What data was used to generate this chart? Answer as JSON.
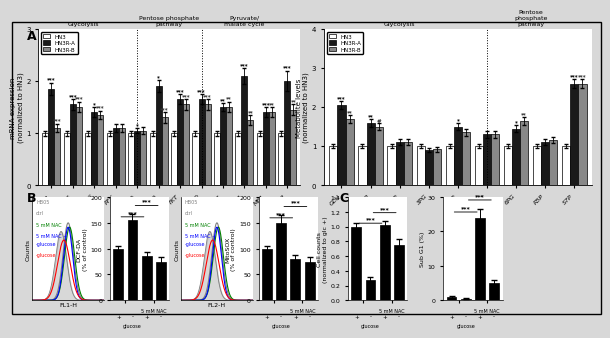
{
  "panel_A_left": {
    "categories": [
      "Glut1",
      "Glut3",
      "HKII",
      "PFK",
      "LDHA",
      "G6PD",
      "TKT",
      "TALDO",
      "GOT1",
      "MDH1",
      "ME1",
      "ME2"
    ],
    "HN3": [
      1.0,
      1.0,
      1.0,
      1.0,
      1.0,
      1.0,
      1.0,
      1.0,
      1.0,
      1.0,
      1.0,
      1.0
    ],
    "HN3R_A": [
      1.85,
      1.55,
      1.4,
      1.1,
      1.05,
      1.9,
      1.65,
      1.65,
      1.5,
      2.1,
      1.4,
      2.0
    ],
    "HN3R_B": [
      1.1,
      1.5,
      1.35,
      1.1,
      1.05,
      1.3,
      1.55,
      1.55,
      1.5,
      1.25,
      1.4,
      1.45
    ],
    "HN3_err": [
      0.05,
      0.05,
      0.05,
      0.05,
      0.05,
      0.05,
      0.05,
      0.05,
      0.05,
      0.05,
      0.05,
      0.05
    ],
    "HN3R_A_err": [
      0.12,
      0.1,
      0.1,
      0.08,
      0.05,
      0.12,
      0.1,
      0.1,
      0.08,
      0.15,
      0.1,
      0.2
    ],
    "HN3R_B_err": [
      0.08,
      0.1,
      0.08,
      0.08,
      0.06,
      0.1,
      0.1,
      0.1,
      0.1,
      0.1,
      0.1,
      0.1
    ],
    "sig_A": [
      "***",
      "***",
      "*",
      "",
      "*",
      "*",
      "***",
      "***",
      "**",
      "***",
      "***",
      "***"
    ],
    "sig_B": [
      "***",
      "***",
      "***",
      "",
      "",
      "***",
      "***",
      "***",
      "**",
      "**",
      "**",
      "**"
    ],
    "ylabel": "mRNA expression\n(normalized to HN3)",
    "ylim": [
      0,
      3.0
    ],
    "sections": [
      {
        "label": "Glycolysis",
        "start": 0,
        "end": 4
      },
      {
        "label": "Pentose phosphate\npathway",
        "start": 5,
        "end": 7
      },
      {
        "label": "Pyruvate/\nmalate cycle",
        "start": 8,
        "end": 11
      }
    ],
    "dividers": [
      4.5,
      7.5
    ]
  },
  "panel_A_right": {
    "categories": [
      "GLU",
      "G6P/F6P",
      "FBP",
      "3PG",
      "PEP",
      "PYR",
      "6PG",
      "R5P",
      "S7P"
    ],
    "HN3": [
      1.0,
      1.0,
      1.0,
      1.0,
      1.0,
      1.0,
      1.0,
      1.0,
      1.0
    ],
    "HN3R_A": [
      2.05,
      1.6,
      1.1,
      0.9,
      1.5,
      1.3,
      1.45,
      1.1,
      2.6
    ],
    "HN3R_B": [
      1.7,
      1.5,
      1.1,
      0.92,
      1.35,
      1.3,
      1.65,
      1.15,
      2.6
    ],
    "HN3_err": [
      0.05,
      0.05,
      0.05,
      0.05,
      0.05,
      0.05,
      0.05,
      0.05,
      0.05
    ],
    "HN3R_A_err": [
      0.1,
      0.1,
      0.08,
      0.06,
      0.08,
      0.1,
      0.08,
      0.08,
      0.12
    ],
    "HN3R_B_err": [
      0.1,
      0.08,
      0.08,
      0.06,
      0.08,
      0.1,
      0.1,
      0.08,
      0.12
    ],
    "sig_A": [
      "***",
      "**",
      "",
      "",
      "*",
      "",
      "*",
      "",
      "***"
    ],
    "sig_B": [
      "**",
      "#",
      "",
      "",
      "",
      "",
      "**",
      "",
      "***"
    ],
    "ylabel": "Metabolite levels\n(normalized to HN3)",
    "ylim": [
      0,
      4.0
    ],
    "sections": [
      {
        "label": "Glycolysis",
        "start": 0,
        "end": 5
      },
      {
        "label": "Pentose\nphosphate\npathway",
        "start": 6,
        "end": 8
      }
    ],
    "dividers": [
      5.5
    ]
  },
  "colors": {
    "HN3": "#ffffff",
    "HN3R_A": "#1a1a1a",
    "HN3R_B": "#888888",
    "edge": "#000000"
  },
  "panel_B_bar_left": {
    "ylabel": "DCF-DA\n(% of control)",
    "ylim": [
      0,
      200
    ],
    "yticks": [
      0,
      50,
      100,
      150,
      200
    ],
    "bars": [
      100,
      155,
      85,
      75
    ],
    "errors": [
      5,
      12,
      8,
      8
    ],
    "xlabel_groups": [
      "glucose\n+ +\n5 mM NAC"
    ],
    "sig": "***"
  },
  "panel_B_bar_right": {
    "ylabel": "MitoSOX\n(% of control)",
    "ylim": [
      0,
      200
    ],
    "yticks": [
      0,
      50,
      100,
      150,
      200
    ],
    "bars": [
      100,
      150,
      80,
      75
    ],
    "errors": [
      5,
      15,
      8,
      8
    ],
    "sig": "***"
  },
  "panel_C_left": {
    "ylabel": "Cell counts\n(normalized to glc +)",
    "ylim": [
      0,
      1.4
    ],
    "yticks": [
      0.0,
      0.2,
      0.4,
      0.6,
      0.8,
      1.0,
      1.2,
      1.4
    ],
    "bars": [
      1.0,
      0.28,
      1.02,
      0.75
    ],
    "errors": [
      0.05,
      0.04,
      0.06,
      0.08
    ],
    "sig": "***"
  },
  "panel_C_right": {
    "ylabel": "Sub G1 (%)",
    "ylim": [
      0,
      30
    ],
    "yticks": [
      0,
      10,
      20,
      30
    ],
    "bars": [
      1.0,
      0.5,
      24,
      5
    ],
    "errors": [
      0.3,
      0.2,
      2.5,
      1.0
    ],
    "sig": "***"
  },
  "bar_x_labels": [
    "glucose\n+\n ",
    "+ \n-\n5 mM NAC"
  ],
  "panel_label_fontsize": 9,
  "axis_fontsize": 6,
  "tick_fontsize": 5.5,
  "sig_fontsize": 5,
  "background": "#f0f0f0"
}
